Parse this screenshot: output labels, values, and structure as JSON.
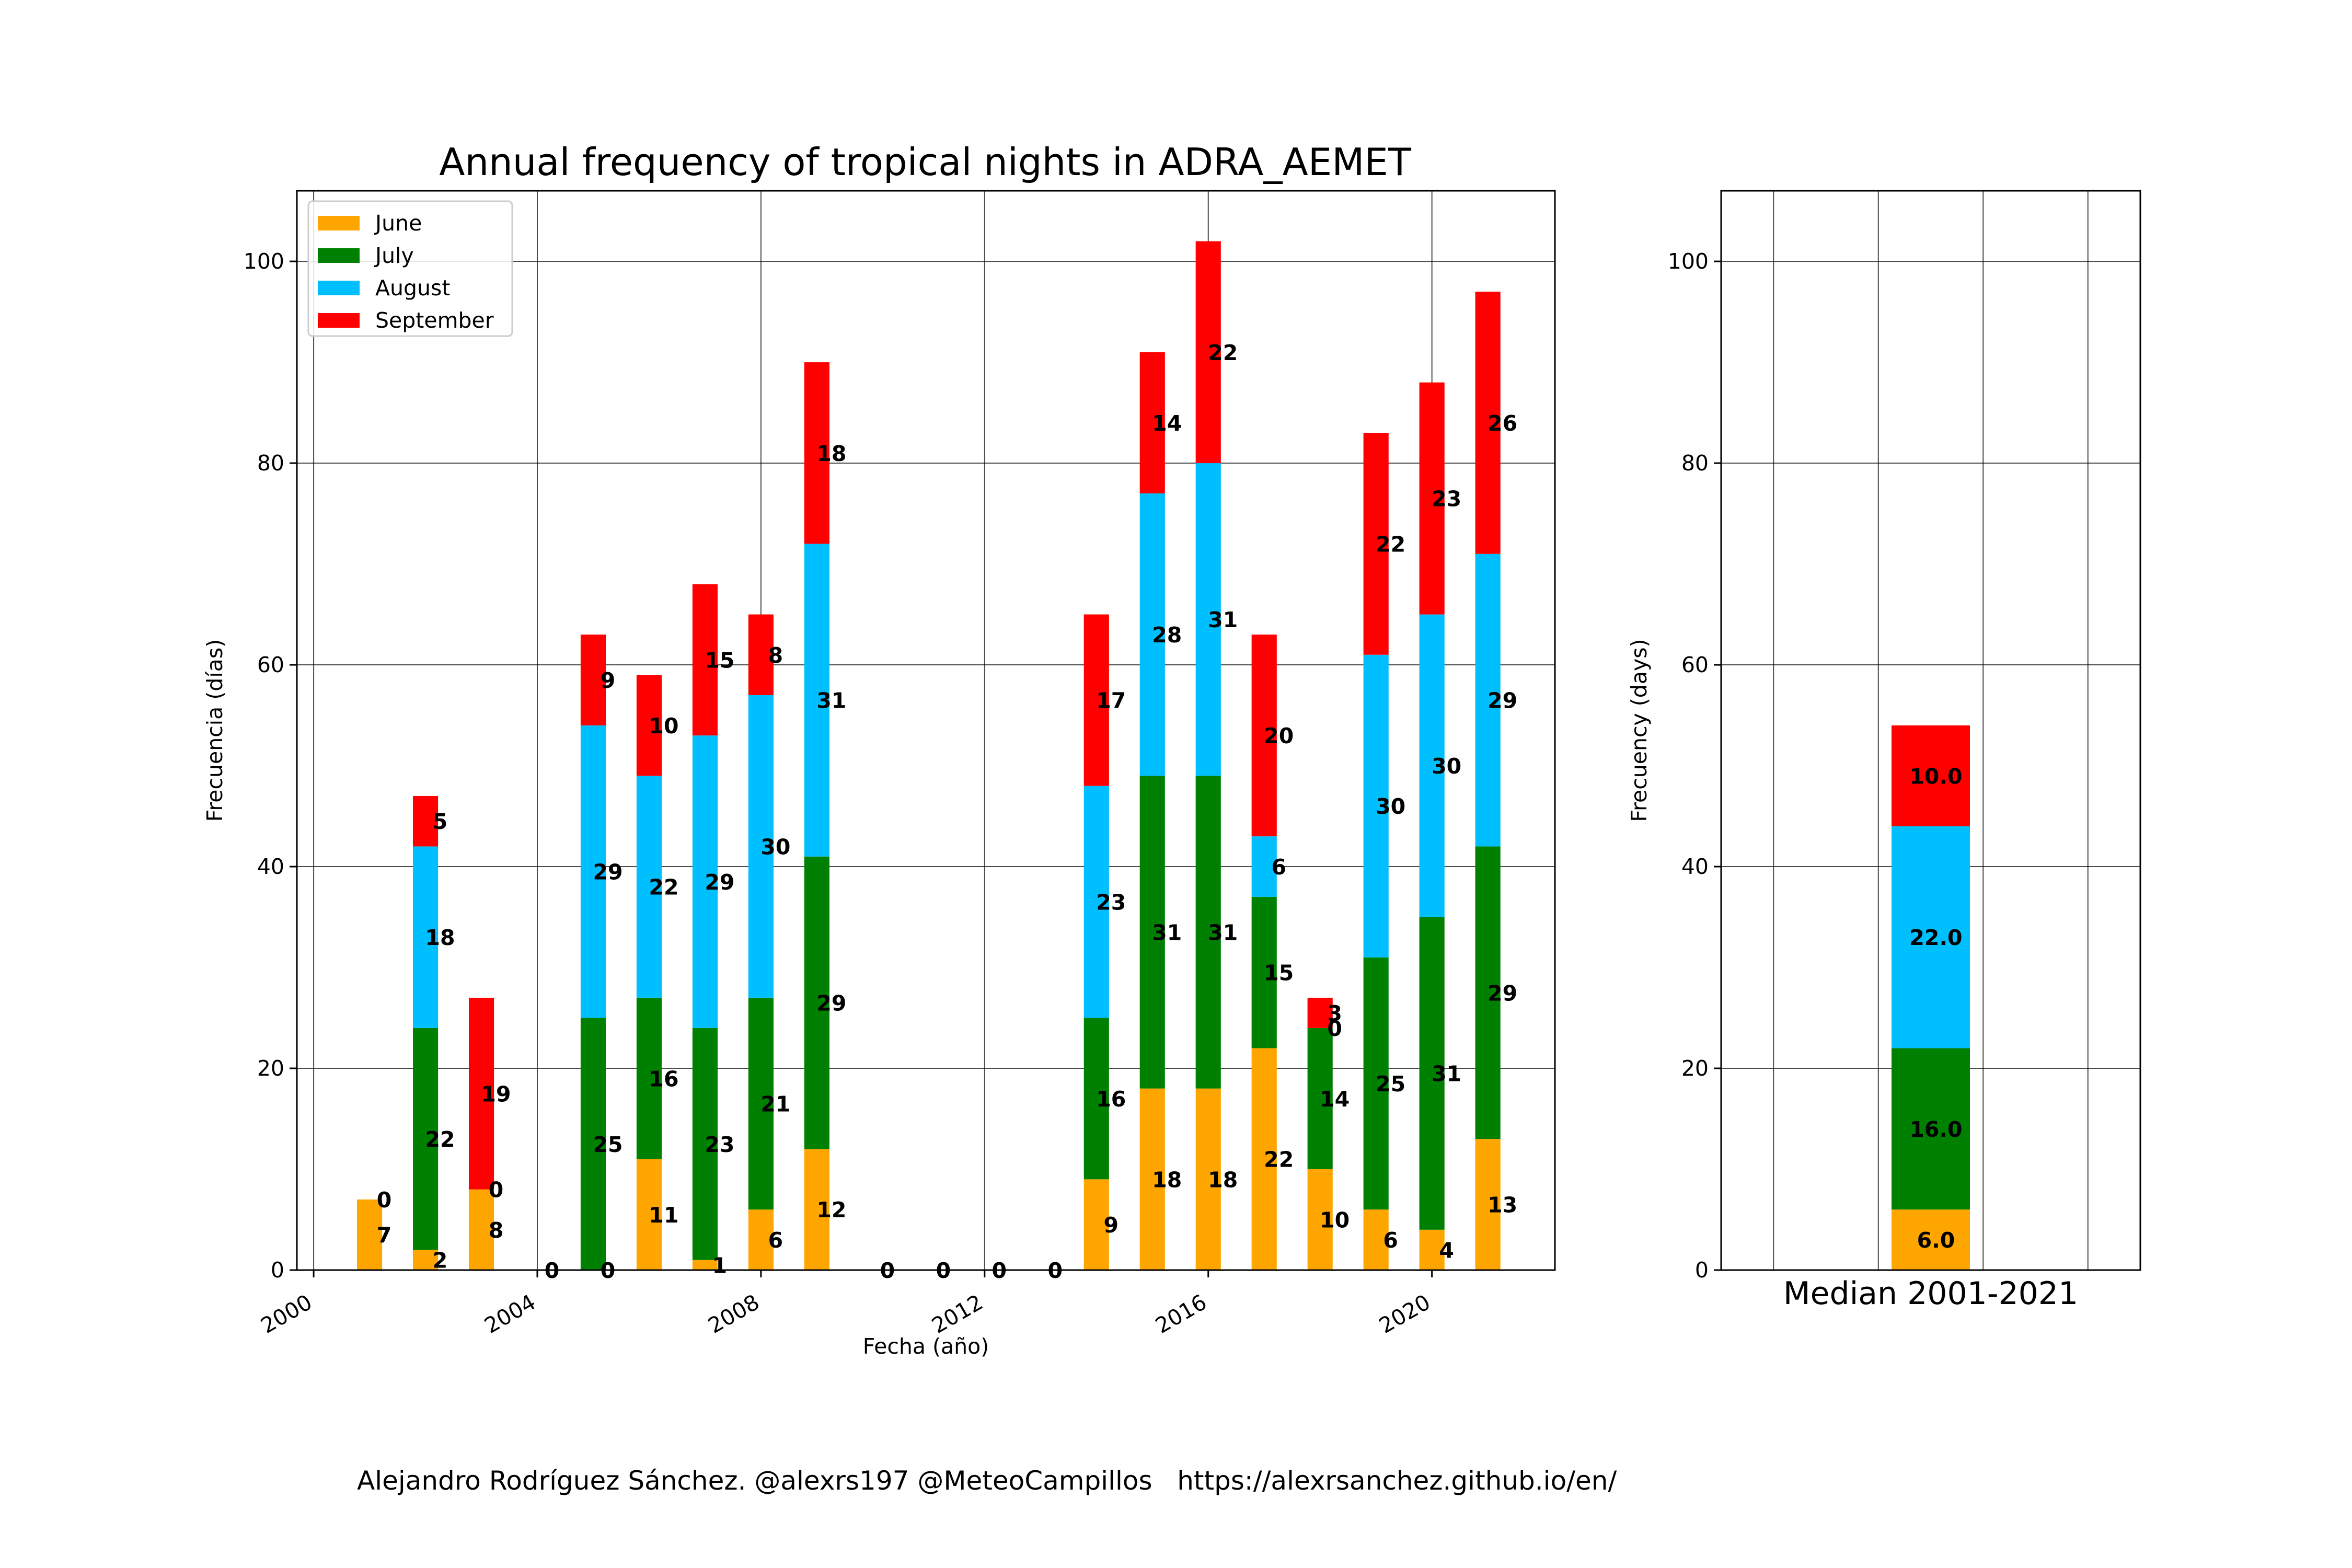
{
  "chart_data": [
    {
      "type": "bar",
      "stacked": true,
      "title": "Annual frequency of tropical nights in ADRA_AEMET",
      "xlabel": "Fecha (año)",
      "ylabel": "Frecuencia (días)",
      "xlim": [
        1999.7,
        2022.2
      ],
      "ylim": [
        0,
        107
      ],
      "xticks": [
        "2000",
        "2004",
        "2008",
        "2012",
        "2016",
        "2020"
      ],
      "yticks": [
        "0",
        "20",
        "40",
        "60",
        "80",
        "100"
      ],
      "grid": true,
      "legend_position": "top-left",
      "categories": [
        2001,
        2002,
        2003,
        2004,
        2005,
        2006,
        2007,
        2008,
        2009,
        2010,
        2011,
        2012,
        2013,
        2014,
        2015,
        2016,
        2017,
        2018,
        2019,
        2020,
        2021
      ],
      "series": [
        {
          "name": "June",
          "color": "#ffa500",
          "values": [
            7,
            2,
            8,
            0,
            0,
            11,
            1,
            6,
            12,
            0,
            0,
            0,
            0,
            9,
            18,
            18,
            22,
            10,
            6,
            4,
            13
          ]
        },
        {
          "name": "July",
          "color": "#008000",
          "values": [
            0,
            22,
            0,
            null,
            25,
            16,
            23,
            21,
            29,
            null,
            null,
            null,
            null,
            16,
            31,
            31,
            15,
            14,
            25,
            31,
            29
          ]
        },
        {
          "name": "August",
          "color": "#00bfff",
          "values": [
            null,
            18,
            null,
            null,
            29,
            22,
            29,
            30,
            31,
            null,
            null,
            null,
            null,
            23,
            28,
            31,
            6,
            0,
            30,
            30,
            29
          ]
        },
        {
          "name": "September",
          "color": "#ff0000",
          "values": [
            null,
            5,
            19,
            null,
            9,
            10,
            15,
            8,
            18,
            null,
            null,
            null,
            null,
            17,
            14,
            22,
            20,
            3,
            22,
            23,
            26
          ]
        }
      ]
    },
    {
      "type": "bar",
      "stacked": true,
      "categories": [
        "Median 2001-2021"
      ],
      "ylabel": "Frecuency (days)",
      "ylim": [
        0,
        107
      ],
      "yticks": [
        "0",
        "20",
        "40",
        "60",
        "80",
        "100"
      ],
      "grid": true,
      "series": [
        {
          "name": "June",
          "color": "#ffa500",
          "values": [
            6.0
          ]
        },
        {
          "name": "July",
          "color": "#008000",
          "values": [
            16.0
          ]
        },
        {
          "name": "August",
          "color": "#00bfff",
          "values": [
            22.0
          ]
        },
        {
          "name": "September",
          "color": "#ff0000",
          "values": [
            10.0
          ]
        }
      ]
    }
  ],
  "credit": "Alejandro Rodríguez Sánchez. @alexrs197 @MeteoCampillos   https://alexrsanchez.github.io/en/"
}
